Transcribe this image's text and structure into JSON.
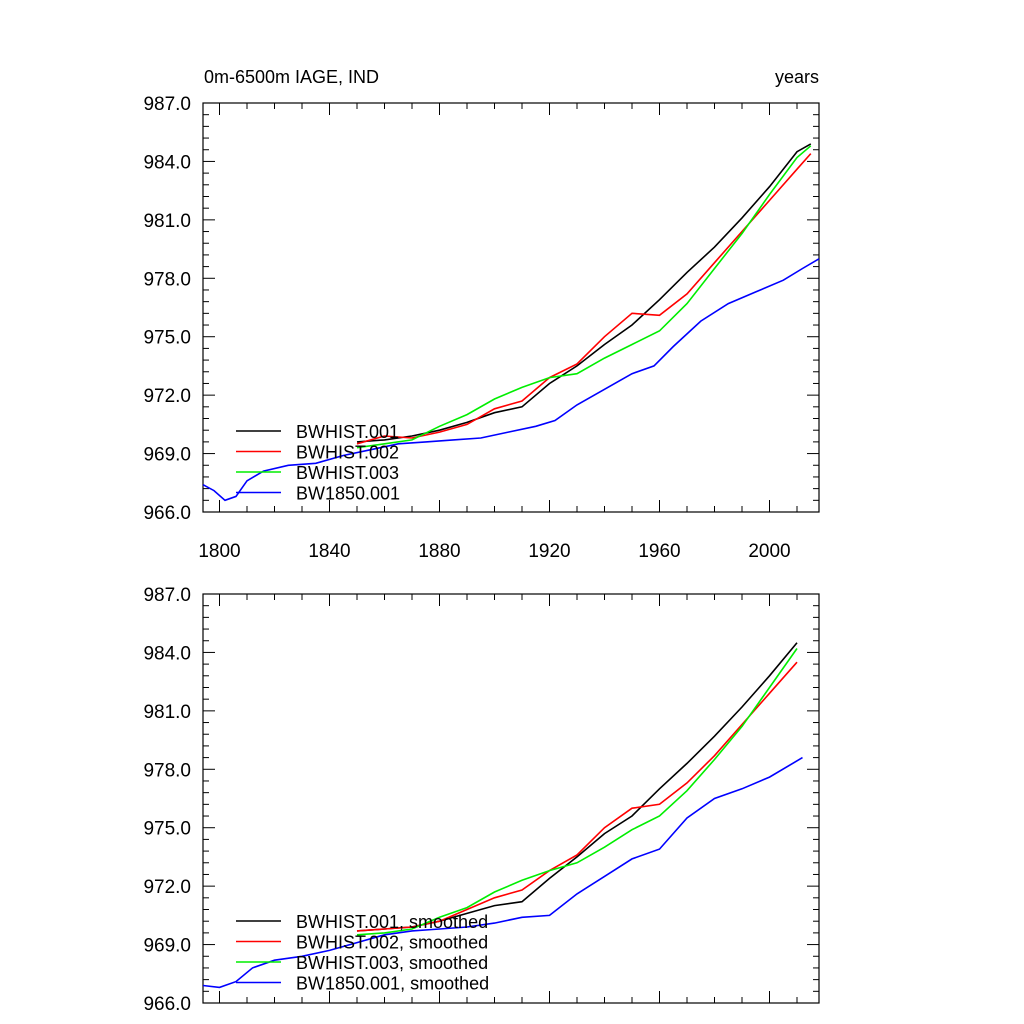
{
  "header": {
    "title_left": "0m-6500m IAGE, IND",
    "title_right": "years"
  },
  "chart_data": [
    {
      "type": "line",
      "ylim": [
        966.0,
        987.0
      ],
      "yticks": [
        966.0,
        969.0,
        972.0,
        975.0,
        978.0,
        981.0,
        984.0,
        987.0
      ],
      "xlim": [
        1794,
        2018
      ],
      "xticks": [
        1800,
        1840,
        1880,
        1920,
        1960,
        2000
      ],
      "x_tick_labels_shown": true,
      "legend_position": "lower-left",
      "series": [
        {
          "name": "BWHIST.001",
          "color": "#000000",
          "points": [
            [
              1850,
              969.6
            ],
            [
              1860,
              969.7
            ],
            [
              1870,
              969.9
            ],
            [
              1880,
              970.2
            ],
            [
              1890,
              970.6
            ],
            [
              1900,
              971.1
            ],
            [
              1910,
              971.4
            ],
            [
              1920,
              972.6
            ],
            [
              1930,
              973.5
            ],
            [
              1940,
              974.6
            ],
            [
              1950,
              975.6
            ],
            [
              1960,
              976.9
            ],
            [
              1970,
              978.3
            ],
            [
              1980,
              979.6
            ],
            [
              1990,
              981.1
            ],
            [
              2000,
              982.7
            ],
            [
              2010,
              984.5
            ],
            [
              2015,
              984.9
            ]
          ]
        },
        {
          "name": "BWHIST.002",
          "color": "#ff0000",
          "points": [
            [
              1850,
              969.5
            ],
            [
              1860,
              969.9
            ],
            [
              1870,
              969.8
            ],
            [
              1880,
              970.1
            ],
            [
              1890,
              970.5
            ],
            [
              1900,
              971.3
            ],
            [
              1910,
              971.7
            ],
            [
              1920,
              972.9
            ],
            [
              1930,
              973.6
            ],
            [
              1940,
              975.0
            ],
            [
              1950,
              976.2
            ],
            [
              1960,
              976.1
            ],
            [
              1970,
              977.2
            ],
            [
              1980,
              978.8
            ],
            [
              1990,
              980.4
            ],
            [
              2000,
              982.0
            ],
            [
              2010,
              983.6
            ],
            [
              2015,
              984.4
            ]
          ]
        },
        {
          "name": "BWHIST.003",
          "color": "#00ee00",
          "points": [
            [
              1850,
              969.3
            ],
            [
              1860,
              969.5
            ],
            [
              1870,
              969.7
            ],
            [
              1880,
              970.4
            ],
            [
              1890,
              971.0
            ],
            [
              1900,
              971.8
            ],
            [
              1910,
              972.4
            ],
            [
              1920,
              972.9
            ],
            [
              1930,
              973.1
            ],
            [
              1940,
              973.9
            ],
            [
              1950,
              974.6
            ],
            [
              1960,
              975.3
            ],
            [
              1970,
              976.7
            ],
            [
              1980,
              978.5
            ],
            [
              1990,
              980.3
            ],
            [
              2000,
              982.3
            ],
            [
              2010,
              984.2
            ],
            [
              2015,
              984.8
            ]
          ]
        },
        {
          "name": "BW1850.001",
          "color": "#0000ff",
          "points": [
            [
              1794,
              967.4
            ],
            [
              1798,
              967.1
            ],
            [
              1802,
              966.6
            ],
            [
              1806,
              966.8
            ],
            [
              1810,
              967.6
            ],
            [
              1816,
              968.1
            ],
            [
              1825,
              968.4
            ],
            [
              1835,
              968.5
            ],
            [
              1845,
              968.9
            ],
            [
              1855,
              969.2
            ],
            [
              1865,
              969.5
            ],
            [
              1875,
              969.6
            ],
            [
              1885,
              969.7
            ],
            [
              1895,
              969.8
            ],
            [
              1905,
              970.1
            ],
            [
              1915,
              970.4
            ],
            [
              1922,
              970.7
            ],
            [
              1930,
              971.5
            ],
            [
              1940,
              972.3
            ],
            [
              1950,
              973.1
            ],
            [
              1958,
              973.5
            ],
            [
              1965,
              974.5
            ],
            [
              1975,
              975.8
            ],
            [
              1985,
              976.7
            ],
            [
              1995,
              977.3
            ],
            [
              2005,
              977.9
            ],
            [
              2012,
              978.5
            ],
            [
              2018,
              979.0
            ]
          ]
        }
      ]
    },
    {
      "type": "line",
      "ylim": [
        966.0,
        987.0
      ],
      "yticks": [
        966.0,
        969.0,
        972.0,
        975.0,
        978.0,
        981.0,
        984.0,
        987.0
      ],
      "xlim": [
        1794,
        2018
      ],
      "xticks": [
        1800,
        1840,
        1880,
        1920,
        1960,
        2000
      ],
      "x_tick_labels_shown": false,
      "legend_position": "lower-left",
      "series": [
        {
          "name": "BWHIST.001, smoothed",
          "color": "#000000",
          "points": [
            [
              1850,
              969.7
            ],
            [
              1860,
              969.8
            ],
            [
              1870,
              969.9
            ],
            [
              1880,
              970.2
            ],
            [
              1890,
              970.6
            ],
            [
              1900,
              971.0
            ],
            [
              1910,
              971.2
            ],
            [
              1920,
              972.4
            ],
            [
              1930,
              973.5
            ],
            [
              1940,
              974.7
            ],
            [
              1950,
              975.6
            ],
            [
              1960,
              977.0
            ],
            [
              1970,
              978.3
            ],
            [
              1980,
              979.7
            ],
            [
              1990,
              981.2
            ],
            [
              2000,
              982.8
            ],
            [
              2010,
              984.5
            ]
          ]
        },
        {
          "name": "BWHIST.002, smoothed",
          "color": "#ff0000",
          "points": [
            [
              1850,
              969.7
            ],
            [
              1860,
              969.8
            ],
            [
              1870,
              969.9
            ],
            [
              1880,
              970.2
            ],
            [
              1890,
              970.8
            ],
            [
              1900,
              971.4
            ],
            [
              1910,
              971.8
            ],
            [
              1920,
              972.8
            ],
            [
              1930,
              973.6
            ],
            [
              1940,
              975.0
            ],
            [
              1950,
              976.0
            ],
            [
              1960,
              976.2
            ],
            [
              1970,
              977.3
            ],
            [
              1980,
              978.7
            ],
            [
              1990,
              980.3
            ],
            [
              2000,
              981.9
            ],
            [
              2010,
              983.5
            ]
          ]
        },
        {
          "name": "BWHIST.003, smoothed",
          "color": "#00ee00",
          "points": [
            [
              1850,
              969.5
            ],
            [
              1860,
              969.6
            ],
            [
              1870,
              969.8
            ],
            [
              1880,
              970.4
            ],
            [
              1890,
              970.9
            ],
            [
              1900,
              971.7
            ],
            [
              1910,
              972.3
            ],
            [
              1920,
              972.8
            ],
            [
              1930,
              973.2
            ],
            [
              1940,
              974.0
            ],
            [
              1950,
              974.9
            ],
            [
              1960,
              975.6
            ],
            [
              1970,
              976.9
            ],
            [
              1980,
              978.5
            ],
            [
              1990,
              980.2
            ],
            [
              2000,
              982.2
            ],
            [
              2010,
              984.2
            ]
          ]
        },
        {
          "name": "BW1850.001, smoothed",
          "color": "#0000ff",
          "points": [
            [
              1794,
              966.9
            ],
            [
              1800,
              966.8
            ],
            [
              1806,
              967.1
            ],
            [
              1812,
              967.8
            ],
            [
              1820,
              968.2
            ],
            [
              1830,
              968.4
            ],
            [
              1840,
              968.7
            ],
            [
              1850,
              969.1
            ],
            [
              1860,
              969.5
            ],
            [
              1870,
              969.7
            ],
            [
              1880,
              969.8
            ],
            [
              1890,
              969.9
            ],
            [
              1900,
              970.1
            ],
            [
              1910,
              970.4
            ],
            [
              1920,
              970.5
            ],
            [
              1930,
              971.6
            ],
            [
              1940,
              972.5
            ],
            [
              1950,
              973.4
            ],
            [
              1960,
              973.9
            ],
            [
              1970,
              975.5
            ],
            [
              1980,
              976.5
            ],
            [
              1990,
              977.0
            ],
            [
              2000,
              977.6
            ],
            [
              2012,
              978.6
            ]
          ]
        }
      ]
    }
  ]
}
